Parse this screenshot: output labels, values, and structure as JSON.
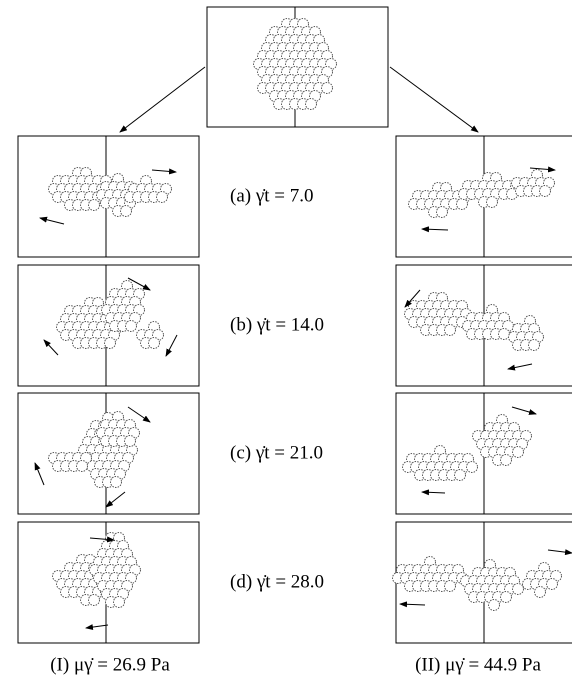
{
  "panels": [
    "(a) γ̇t = 7.0",
    "(b) γ̇t = 14.0",
    "(c) γ̇t = 21.0",
    "(d) γ̇t = 28.0"
  ],
  "columns": [
    "(I) μγ̇ = 26.9 Pa",
    "(II) μγ̇ = 44.9 Pa"
  ]
}
